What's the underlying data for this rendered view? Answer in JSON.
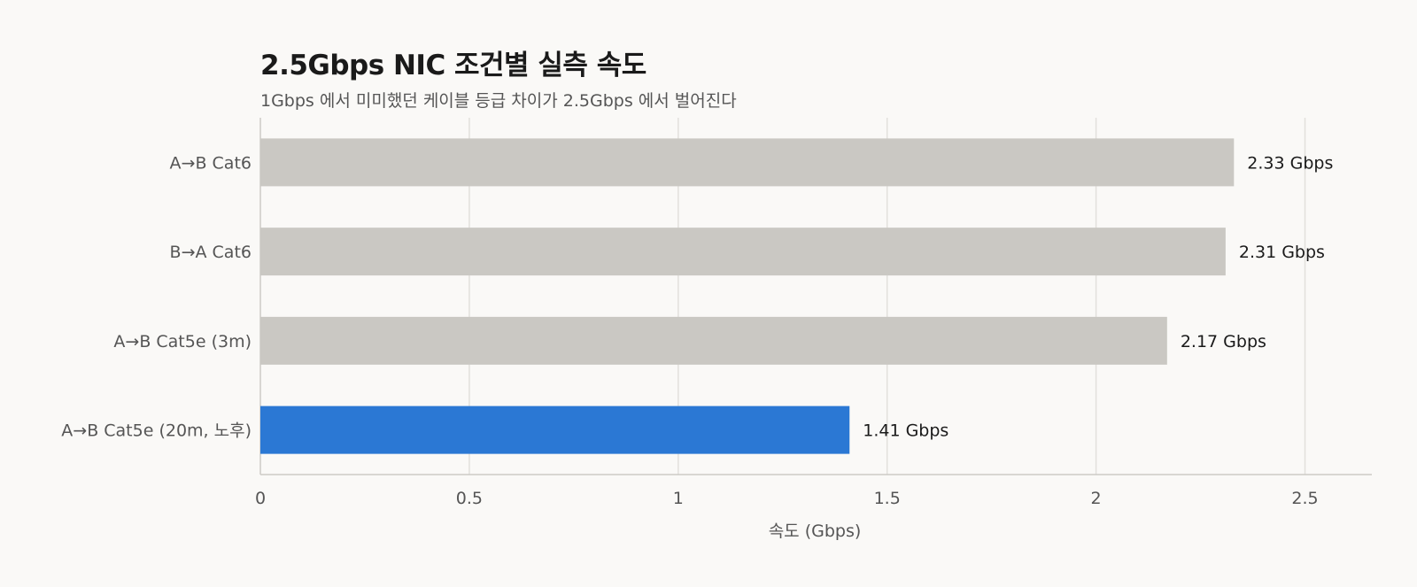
{
  "header": {
    "title": "2.5Gbps NIC 조건별 실측 속도",
    "subtitle": "1Gbps 에서 미미했던 케이블 등급 차이가 2.5Gbps 에서 벌어진다"
  },
  "colors": {
    "bar_default": "#cac8c3",
    "bar_highlight": "#2b78d4",
    "grid": "#e2e0dc",
    "axis": "#cccac6"
  },
  "chart_data": {
    "type": "bar",
    "orientation": "horizontal",
    "title": "2.5Gbps NIC 조건별 실측 속도",
    "subtitle": "1Gbps 에서 미미했던 케이블 등급 차이가 2.5Gbps 에서 벌어진다",
    "xlabel": "속도 (Gbps)",
    "ylabel": "",
    "xlim": [
      0,
      2.66
    ],
    "xticks": [
      0,
      0.5,
      1,
      1.5,
      2,
      2.5
    ],
    "xtick_labels": [
      "0",
      "0.5",
      "1",
      "1.5",
      "2",
      "2.5"
    ],
    "grid": true,
    "categories": [
      "A→B Cat6",
      "B→A Cat6",
      "A→B Cat5e (3m)",
      "A→B Cat5e (20m, 노후)"
    ],
    "values": [
      2.33,
      2.31,
      2.17,
      1.41
    ],
    "value_labels": [
      "2.33 Gbps",
      "2.31 Gbps",
      "2.17 Gbps",
      "1.41 Gbps"
    ],
    "highlight": [
      false,
      false,
      false,
      true
    ]
  }
}
